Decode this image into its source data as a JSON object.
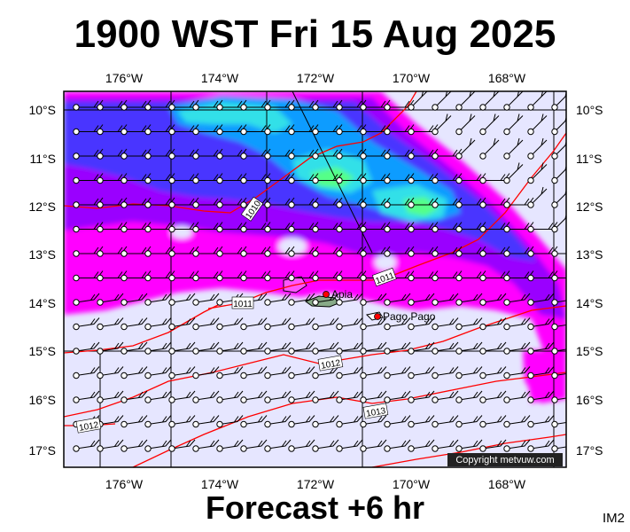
{
  "header": {
    "title": "1900 WST Fri 15 Aug 2025"
  },
  "footer": {
    "forecast": "Forecast +6 hr",
    "code": "IM2"
  },
  "map": {
    "lon_labels": [
      "176°W",
      "174°W",
      "172°W",
      "170°W",
      "168°W"
    ],
    "lat_labels": [
      "10°S",
      "11°S",
      "12°S",
      "13°S",
      "14°S",
      "15°S",
      "16°S",
      "17°S"
    ],
    "places": [
      {
        "name": "Apia",
        "lon": -171.77,
        "lat": -13.83
      },
      {
        "name": "Pago Pago",
        "lon": -170.7,
        "lat": -14.28
      }
    ],
    "isobar_labels": [
      "1010",
      "1011",
      "1011",
      "1012",
      "1013",
      "1012"
    ],
    "copyright": "Copyright metvuw.com",
    "colors": {
      "background": "#e6e6ff",
      "magenta": "#ff00ff",
      "purple": "#9a00ff",
      "blue": "#4a36ff",
      "light_blue": "#0a9cff",
      "cyan": "#33e0e8",
      "green": "#55ff88",
      "isobar": "#ff0000"
    }
  }
}
